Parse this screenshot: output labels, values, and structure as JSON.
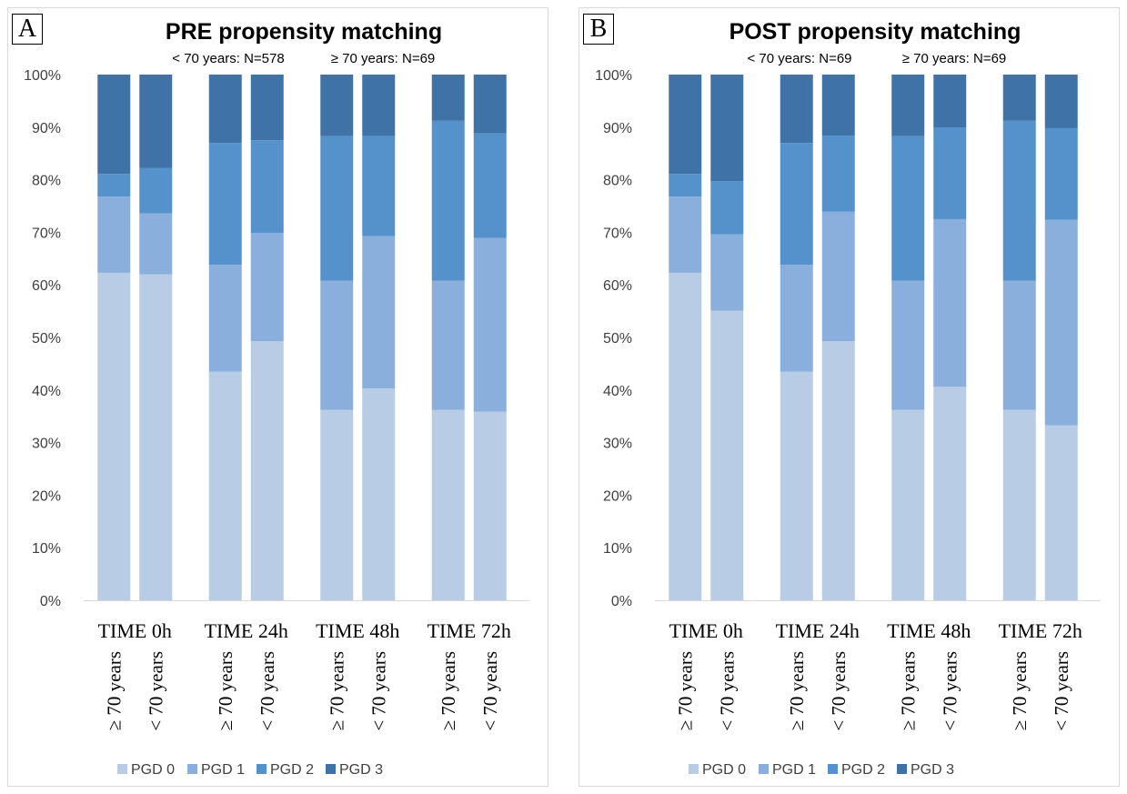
{
  "colors": {
    "PGD 0": "#b8cce6",
    "PGD 1": "#8aafdc",
    "PGD 2": "#5592cc",
    "PGD 3": "#3f73a8"
  },
  "chart_data": [
    {
      "type": "bar",
      "stacked": true,
      "panel_letter": "A",
      "title": "PRE propensity matching",
      "subtitle_parts": [
        "< 70 years: N=578",
        "≥ 70 years: N=69"
      ],
      "groups": [
        "TIME 0h",
        "TIME 24h",
        "TIME 48h",
        "TIME 72h"
      ],
      "bar_labels": [
        "≥ 70 years",
        "< 70 years"
      ],
      "categories": [
        "≥ 70 years",
        "< 70 years",
        "≥ 70 years",
        "< 70 years",
        "≥ 70 years",
        "< 70 years",
        "≥ 70 years",
        "< 70 years"
      ],
      "series": [
        {
          "name": "PGD 0",
          "values": [
            62.3,
            62.0,
            43.5,
            49.3,
            36.2,
            40.3,
            36.2,
            35.9
          ]
        },
        {
          "name": "PGD 1",
          "values": [
            14.5,
            11.6,
            20.3,
            20.6,
            24.6,
            29.0,
            24.6,
            33.0
          ]
        },
        {
          "name": "PGD 2",
          "values": [
            4.3,
            8.6,
            23.2,
            17.6,
            27.5,
            19.0,
            30.4,
            19.9
          ]
        },
        {
          "name": "PGD 3",
          "values": [
            18.9,
            17.8,
            13.0,
            12.5,
            11.7,
            11.7,
            8.8,
            11.2
          ]
        }
      ],
      "yticks": [
        "0%",
        "10%",
        "20%",
        "30%",
        "40%",
        "50%",
        "60%",
        "70%",
        "80%",
        "90%",
        "100%"
      ],
      "ylim": [
        0,
        100
      ],
      "legend": "bottom"
    },
    {
      "type": "bar",
      "stacked": true,
      "panel_letter": "B",
      "title": "POST propensity matching",
      "subtitle_parts": [
        "< 70 years: N=69",
        "≥ 70 years: N=69"
      ],
      "groups": [
        "TIME 0h",
        "TIME 24h",
        "TIME 48h",
        "TIME 72h"
      ],
      "bar_labels": [
        "≥ 70 years",
        "< 70 years"
      ],
      "categories": [
        "≥ 70 years",
        "< 70 years",
        "≥ 70 years",
        "< 70 years",
        "≥ 70 years",
        "< 70 years",
        "≥ 70 years",
        "< 70 years"
      ],
      "series": [
        {
          "name": "PGD 0",
          "values": [
            62.3,
            55.1,
            43.5,
            49.3,
            36.2,
            40.6,
            36.2,
            33.3
          ]
        },
        {
          "name": "PGD 1",
          "values": [
            14.5,
            14.5,
            20.3,
            24.6,
            24.6,
            31.9,
            24.6,
            39.1
          ]
        },
        {
          "name": "PGD 2",
          "values": [
            4.3,
            10.1,
            23.2,
            14.5,
            27.5,
            17.4,
            30.4,
            17.4
          ]
        },
        {
          "name": "PGD 3",
          "values": [
            18.9,
            20.3,
            13.0,
            11.6,
            11.7,
            10.1,
            8.8,
            10.2
          ]
        }
      ],
      "yticks": [
        "0%",
        "10%",
        "20%",
        "30%",
        "40%",
        "50%",
        "60%",
        "70%",
        "80%",
        "90%",
        "100%"
      ],
      "ylim": [
        0,
        100
      ],
      "legend": "bottom"
    }
  ]
}
